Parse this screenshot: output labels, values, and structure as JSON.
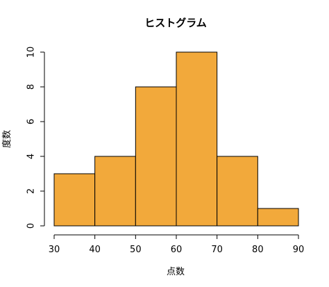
{
  "chart_data": {
    "type": "bar",
    "subtype": "histogram",
    "title": "ヒストグラム",
    "xlabel": "点数",
    "ylabel": "度数",
    "bins": [
      {
        "from": 30,
        "to": 40,
        "count": 3
      },
      {
        "from": 40,
        "to": 50,
        "count": 4
      },
      {
        "from": 50,
        "to": 60,
        "count": 8
      },
      {
        "from": 60,
        "to": 70,
        "count": 10
      },
      {
        "from": 70,
        "to": 80,
        "count": 4
      },
      {
        "from": 80,
        "to": 90,
        "count": 1
      }
    ],
    "xlim": [
      30,
      90
    ],
    "ylim": [
      0,
      10
    ],
    "x_ticks": [
      30,
      40,
      50,
      60,
      70,
      80,
      90
    ],
    "y_ticks": [
      0,
      2,
      4,
      6,
      8,
      10
    ],
    "bar_color": "#F2A93B",
    "grid": false,
    "legend": "none"
  }
}
